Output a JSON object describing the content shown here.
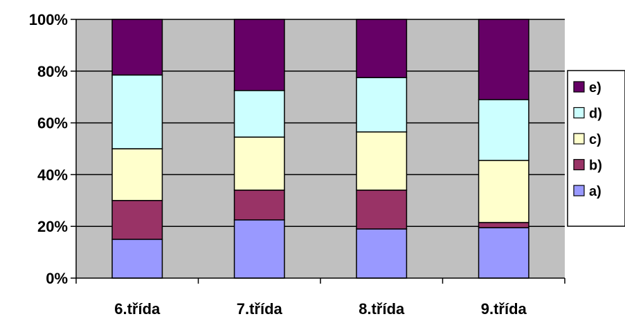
{
  "chart_data": {
    "type": "bar",
    "stacked": true,
    "percent": true,
    "categories": [
      "6.třída",
      "7.třída",
      "8.třída",
      "9.třída"
    ],
    "series": [
      {
        "name": "a)",
        "color": "#9999ff",
        "values": [
          15,
          22.5,
          19,
          19.5
        ]
      },
      {
        "name": "b)",
        "color": "#993366",
        "values": [
          15,
          11.5,
          15,
          2
        ]
      },
      {
        "name": "c)",
        "color": "#ffffcc",
        "values": [
          20,
          20.5,
          22.5,
          24
        ]
      },
      {
        "name": "d)",
        "color": "#ccffff",
        "values": [
          28.5,
          18,
          21,
          23.5
        ]
      },
      {
        "name": "e)",
        "color": "#660066",
        "values": [
          21.5,
          27.5,
          22.5,
          31
        ]
      }
    ],
    "yticks": [
      "0%",
      "20%",
      "40%",
      "60%",
      "80%",
      "100%"
    ],
    "ylim": [
      0,
      100
    ],
    "grid": true,
    "plot_background": "#c0c0c0",
    "legend_position": "right"
  }
}
